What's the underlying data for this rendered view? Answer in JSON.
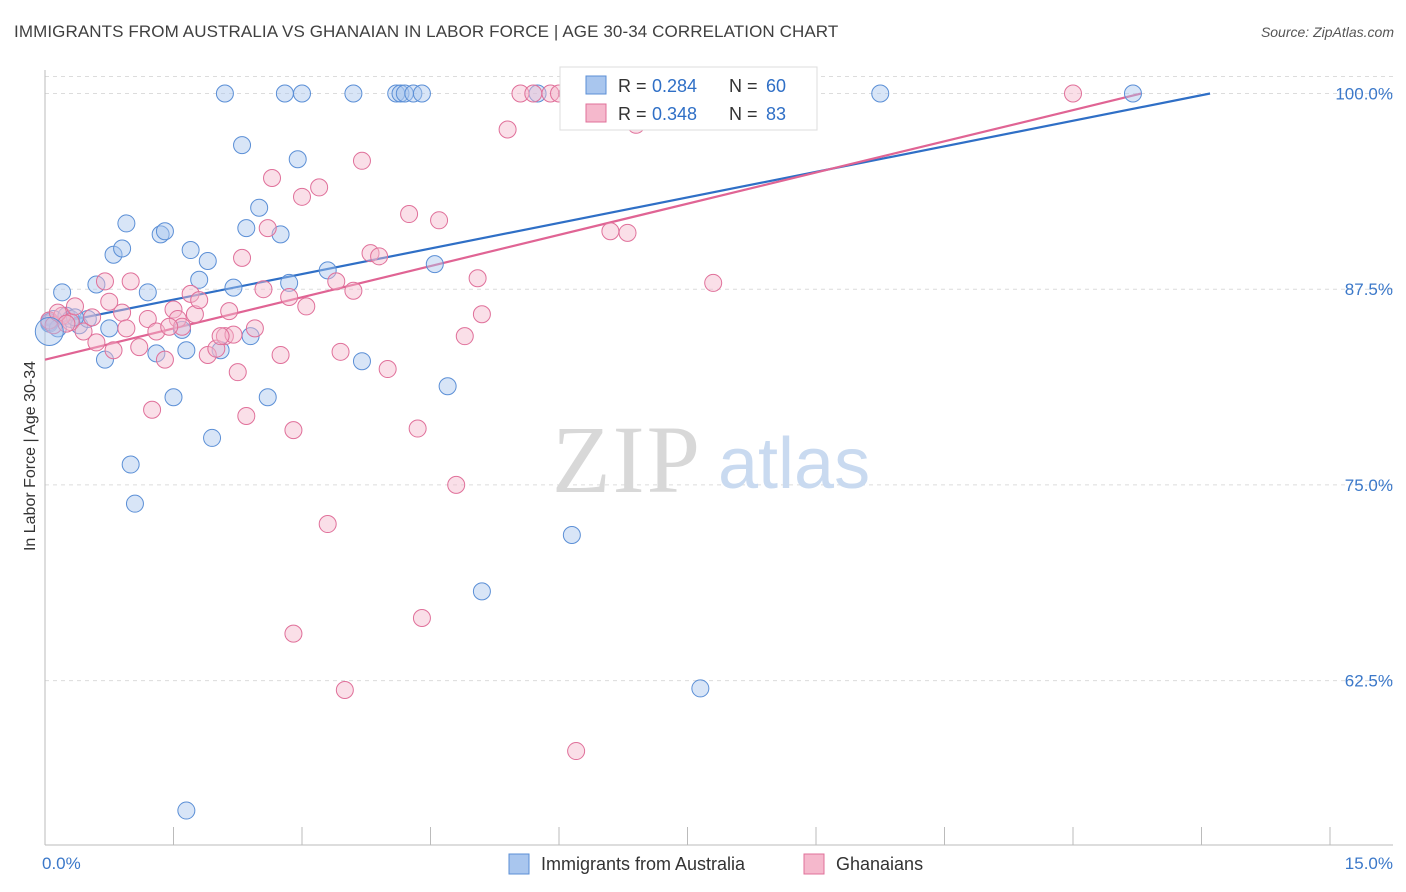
{
  "title": "IMMIGRANTS FROM AUSTRALIA VS GHANAIAN IN LABOR FORCE | AGE 30-34 CORRELATION CHART",
  "source": "Source: ZipAtlas.com",
  "watermark": {
    "zip": "ZIP",
    "atlas": "atlas"
  },
  "colors": {
    "blue": "#5b8fd6",
    "blue_fill": "#a9c6ee",
    "pink": "#e0709a",
    "pink_fill": "#f5b8cc",
    "tick": "#3b78c9"
  },
  "legend_box": [
    {
      "r_label": "R = ",
      "r_value": "0.284",
      "n_label": "N = ",
      "n_value": "60"
    },
    {
      "r_label": "R = ",
      "r_value": "0.348",
      "n_label": "N = ",
      "n_value": "83"
    }
  ],
  "chart_data": {
    "type": "scatter",
    "title": "IMMIGRANTS FROM AUSTRALIA VS GHANAIAN IN LABOR FORCE | AGE 30-34 CORRELATION CHART",
    "xlabel": "",
    "ylabel": "In Labor Force | Age 30-34",
    "xlim": [
      0,
      15
    ],
    "ylim": [
      52,
      101.5
    ],
    "x_tick_labels": [
      "0.0%",
      "15.0%"
    ],
    "y_ticks": [
      62.5,
      75.0,
      87.5,
      100.0
    ],
    "y_tick_labels": [
      "62.5%",
      "75.0%",
      "87.5%",
      "100.0%"
    ],
    "grid": true,
    "legend_position": "bottom",
    "series": [
      {
        "name": "Immigrants from Australia",
        "color": "#5b8fd6",
        "trend": {
          "x": [
            0,
            13.6
          ],
          "y": [
            85.2,
            100
          ]
        },
        "points": [
          [
            0.05,
            85.3
          ],
          [
            0.1,
            85.6
          ],
          [
            0.2,
            87.3
          ],
          [
            0.25,
            85.8
          ],
          [
            0.3,
            85.6
          ],
          [
            0.4,
            85.2
          ],
          [
            0.5,
            85.6
          ],
          [
            0.6,
            87.8
          ],
          [
            0.7,
            83.0
          ],
          [
            0.75,
            85.0
          ],
          [
            0.8,
            89.7
          ],
          [
            0.9,
            90.1
          ],
          [
            0.95,
            91.7
          ],
          [
            1.0,
            76.3
          ],
          [
            1.05,
            73.8
          ],
          [
            1.2,
            87.3
          ],
          [
            1.3,
            83.4
          ],
          [
            1.35,
            91.0
          ],
          [
            1.4,
            91.2
          ],
          [
            1.5,
            80.6
          ],
          [
            1.6,
            84.9
          ],
          [
            1.65,
            83.6
          ],
          [
            1.7,
            90.0
          ],
          [
            1.8,
            88.1
          ],
          [
            1.9,
            89.3
          ],
          [
            1.95,
            78.0
          ],
          [
            2.05,
            83.6
          ],
          [
            2.1,
            100.0
          ],
          [
            2.2,
            87.6
          ],
          [
            2.3,
            96.7
          ],
          [
            2.35,
            91.4
          ],
          [
            2.4,
            84.5
          ],
          [
            2.5,
            92.7
          ],
          [
            2.6,
            80.6
          ],
          [
            2.75,
            91.0
          ],
          [
            2.8,
            100.0
          ],
          [
            2.85,
            87.9
          ],
          [
            2.95,
            95.8
          ],
          [
            3.0,
            100.0
          ],
          [
            3.3,
            88.7
          ],
          [
            3.6,
            100.0
          ],
          [
            3.7,
            82.9
          ],
          [
            4.1,
            100.0
          ],
          [
            4.15,
            100.0
          ],
          [
            4.2,
            100.0
          ],
          [
            4.3,
            100.0
          ],
          [
            4.55,
            89.1
          ],
          [
            4.7,
            81.3
          ],
          [
            5.1,
            68.2
          ],
          [
            5.75,
            100.0
          ],
          [
            6.15,
            71.8
          ],
          [
            7.65,
            62.0
          ],
          [
            9.75,
            100.0
          ],
          [
            12.7,
            100.0
          ],
          [
            1.65,
            54.2
          ],
          [
            0.05,
            85.4
          ],
          [
            0.15,
            85.0
          ],
          [
            0.35,
            85.7
          ],
          [
            4.4,
            100.0
          ],
          [
            6.6,
            100.0
          ]
        ]
      },
      {
        "name": "Ghanaians",
        "color": "#e0709a",
        "trend": {
          "x": [
            0,
            12.8
          ],
          "y": [
            83.0,
            100
          ]
        },
        "points": [
          [
            0.05,
            85.5
          ],
          [
            0.1,
            85.2
          ],
          [
            0.2,
            85.8
          ],
          [
            0.3,
            85.4
          ],
          [
            0.35,
            86.4
          ],
          [
            0.45,
            84.8
          ],
          [
            0.55,
            85.7
          ],
          [
            0.6,
            84.1
          ],
          [
            0.7,
            88.0
          ],
          [
            0.75,
            86.7
          ],
          [
            0.8,
            83.6
          ],
          [
            0.9,
            86.0
          ],
          [
            0.95,
            85.0
          ],
          [
            1.0,
            88.0
          ],
          [
            1.1,
            83.8
          ],
          [
            1.2,
            85.6
          ],
          [
            1.25,
            79.8
          ],
          [
            1.3,
            84.8
          ],
          [
            1.4,
            83.0
          ],
          [
            1.5,
            86.2
          ],
          [
            1.55,
            85.6
          ],
          [
            1.6,
            85.1
          ],
          [
            1.7,
            87.2
          ],
          [
            1.75,
            85.9
          ],
          [
            1.8,
            86.8
          ],
          [
            1.9,
            83.3
          ],
          [
            2.0,
            83.7
          ],
          [
            2.1,
            84.5
          ],
          [
            2.15,
            86.1
          ],
          [
            2.2,
            84.6
          ],
          [
            2.25,
            82.2
          ],
          [
            2.3,
            89.5
          ],
          [
            2.35,
            79.4
          ],
          [
            2.45,
            85.0
          ],
          [
            2.55,
            87.5
          ],
          [
            2.6,
            91.4
          ],
          [
            2.65,
            94.6
          ],
          [
            2.75,
            83.3
          ],
          [
            2.85,
            87.0
          ],
          [
            2.9,
            78.5
          ],
          [
            3.0,
            93.4
          ],
          [
            3.05,
            86.4
          ],
          [
            3.2,
            94.0
          ],
          [
            3.3,
            72.5
          ],
          [
            3.4,
            88.0
          ],
          [
            3.45,
            83.5
          ],
          [
            3.6,
            87.4
          ],
          [
            3.7,
            95.7
          ],
          [
            3.8,
            89.8
          ],
          [
            3.9,
            89.6
          ],
          [
            4.0,
            82.4
          ],
          [
            4.25,
            92.3
          ],
          [
            4.35,
            78.6
          ],
          [
            4.4,
            66.5
          ],
          [
            4.6,
            91.9
          ],
          [
            4.8,
            75.0
          ],
          [
            4.9,
            84.5
          ],
          [
            5.05,
            88.2
          ],
          [
            5.1,
            85.9
          ],
          [
            5.4,
            97.7
          ],
          [
            5.55,
            100.0
          ],
          [
            5.7,
            100.0
          ],
          [
            5.9,
            100.0
          ],
          [
            6.0,
            100.0
          ],
          [
            6.1,
            100.0
          ],
          [
            6.2,
            58.0
          ],
          [
            6.4,
            100.0
          ],
          [
            6.5,
            100.0
          ],
          [
            6.6,
            91.2
          ],
          [
            6.8,
            91.1
          ],
          [
            6.9,
            98.0
          ],
          [
            7.25,
            100.0
          ],
          [
            7.55,
            100.0
          ],
          [
            7.65,
            100.0
          ],
          [
            7.8,
            87.9
          ],
          [
            2.9,
            65.5
          ],
          [
            3.5,
            61.9
          ],
          [
            0.15,
            86.0
          ],
          [
            0.25,
            85.3
          ],
          [
            1.45,
            85.1
          ],
          [
            2.05,
            84.5
          ],
          [
            12.0,
            100.0
          ],
          [
            7.0,
            100.0
          ]
        ]
      }
    ]
  }
}
